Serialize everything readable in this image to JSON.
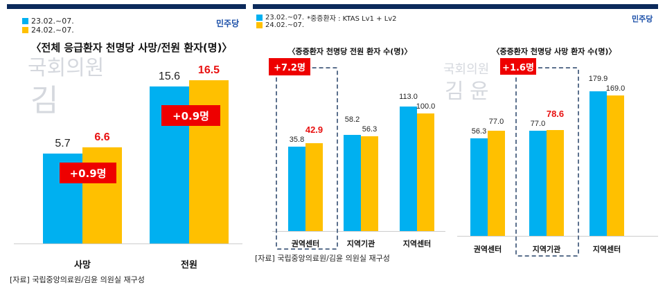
{
  "colors": {
    "series1": "#00b0f0",
    "series2": "#ffc000",
    "highlight": "#e81010",
    "badge": "#ee0000"
  },
  "logo": "민주당",
  "watermark": {
    "line1": "국회의원",
    "name1": "김",
    "name2": "윤"
  },
  "source": "[자료] 국립중앙의료원/김윤 의원실 재구성",
  "chart_data": [
    {
      "type": "bar",
      "title": "〈전체 응급환자 천명당 사망/전원 환자(명)〉",
      "legend": [
        "23.02.~07.",
        "24.02.~07."
      ],
      "categories": [
        "사망",
        "전원"
      ],
      "series": [
        {
          "name": "23.02.~07.",
          "values": [
            5.7,
            15.6
          ]
        },
        {
          "name": "24.02.~07.",
          "values": [
            6.6,
            16.5
          ]
        }
      ],
      "annotations": [
        "+0.9명",
        "+0.9명"
      ]
    },
    {
      "type": "bar",
      "title": "〈중증환자 천명당 전원 환자 수(명)〉",
      "legend": [
        "23.02.~07.",
        "24.02.~07."
      ],
      "note": "*중증환자 : KTAS Lv1 + Lv2",
      "categories": [
        "권역센터",
        "지역기관",
        "지역센터"
      ],
      "series": [
        {
          "name": "23.02.~07.",
          "values": [
            35.8,
            58.2,
            113.0
          ]
        },
        {
          "name": "24.02.~07.",
          "values": [
            42.9,
            56.3,
            100.0
          ]
        }
      ],
      "annotations": [
        "+7.2명"
      ],
      "highlight_category": "권역센터"
    },
    {
      "type": "bar",
      "title": "〈중증환자 천명당 사망 환자 수(명)〉",
      "categories": [
        "권역센터",
        "지역기관",
        "지역센터"
      ],
      "series": [
        {
          "name": "23.02.~07.",
          "values": [
            56.3,
            77.0,
            179.9
          ]
        },
        {
          "name": "24.02.~07.",
          "values": [
            77.0,
            78.6,
            169.0
          ]
        }
      ],
      "annotations": [
        "+1.6명"
      ],
      "highlight_category": "지역기관"
    }
  ]
}
